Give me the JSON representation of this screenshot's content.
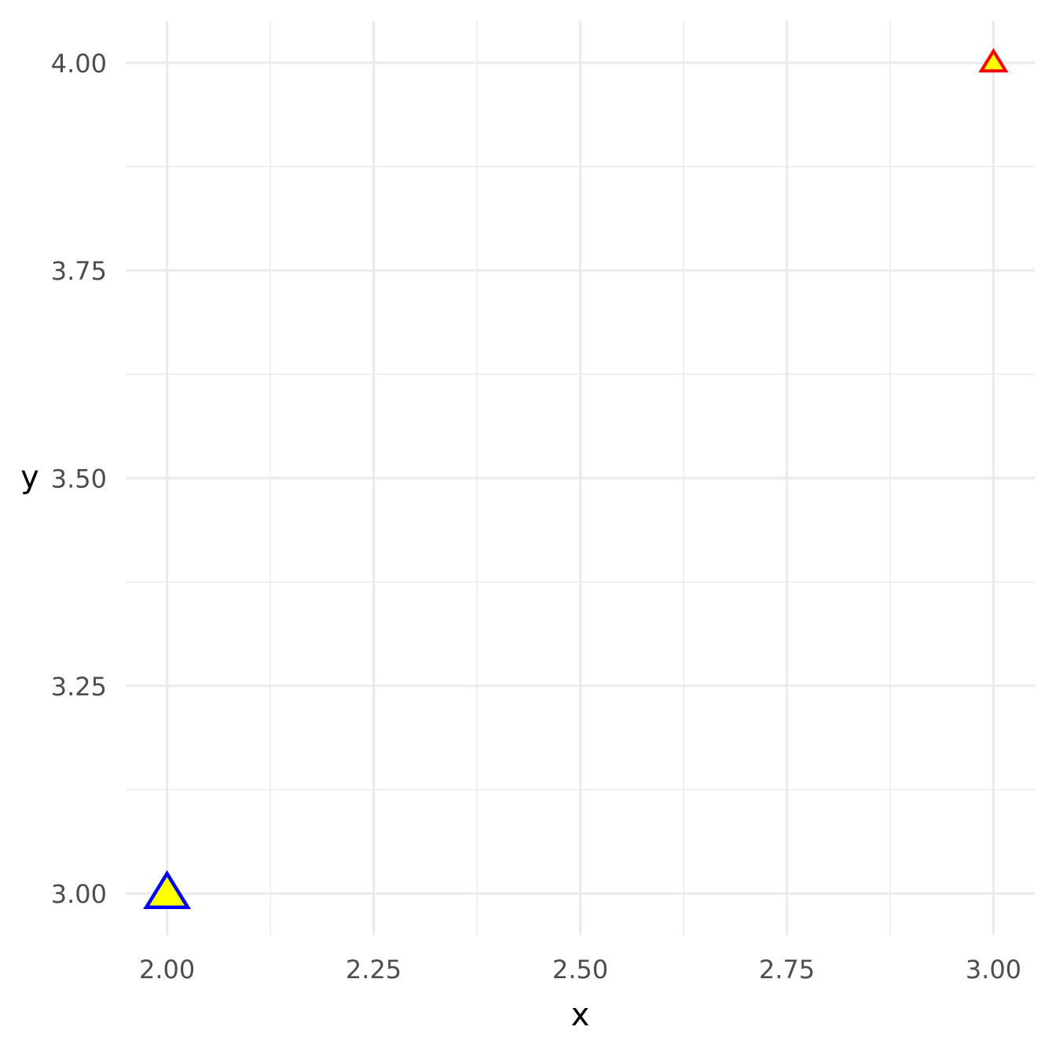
{
  "chart_data": {
    "type": "scatter",
    "title": "",
    "xlabel": "x",
    "ylabel": "y",
    "xlim": [
      1.95,
      3.05
    ],
    "ylim": [
      2.95,
      4.05
    ],
    "x_ticks": [
      {
        "value": 2.0,
        "label": "2.00"
      },
      {
        "value": 2.25,
        "label": "2.25"
      },
      {
        "value": 2.5,
        "label": "2.50"
      },
      {
        "value": 2.75,
        "label": "2.75"
      },
      {
        "value": 3.0,
        "label": "3.00"
      }
    ],
    "y_ticks": [
      {
        "value": 3.0,
        "label": "3.00"
      },
      {
        "value": 3.25,
        "label": "3.25"
      },
      {
        "value": 3.5,
        "label": "3.50"
      },
      {
        "value": 3.75,
        "label": "3.75"
      },
      {
        "value": 4.0,
        "label": "4.00"
      }
    ],
    "x_minor": [
      2.125,
      2.375,
      2.625,
      2.875
    ],
    "y_minor": [
      3.125,
      3.375,
      3.625,
      3.875
    ],
    "grid": true,
    "legend": "none",
    "points": [
      {
        "x": 2.0,
        "y": 3.0,
        "shape": "triangle",
        "fill": "#ffff00",
        "stroke": "#0000ff",
        "size": "large"
      },
      {
        "x": 3.0,
        "y": 4.0,
        "shape": "triangle",
        "fill": "#ffff00",
        "stroke": "#ff0000",
        "size": "small"
      }
    ]
  }
}
